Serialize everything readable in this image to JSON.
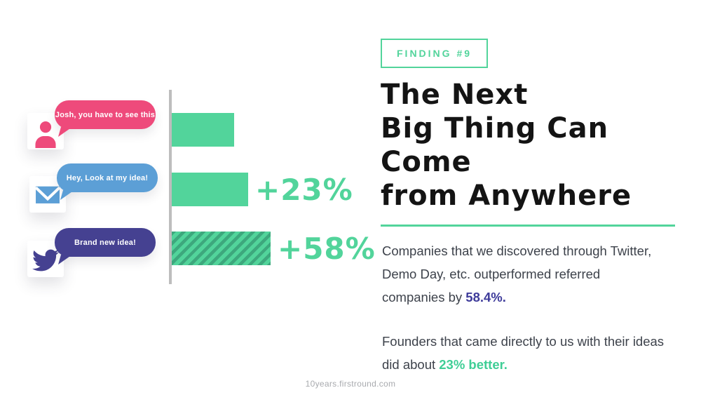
{
  "badge": {
    "label": "FINDING #9"
  },
  "heading": {
    "line1": "The Next",
    "line2": "Big Thing Can Come",
    "line3": "from Anywhere"
  },
  "body": {
    "p1_line1": "Companies that we discovered through Twitter,",
    "p1_line2": "Demo Day, etc. outperformed referred",
    "p1_line3_prefix": "companies by ",
    "p1_line3_highlight": "58.4%.",
    "p2_line1": "Founders that came directly to us with their ideas",
    "p2_line2_prefix": "did about ",
    "p2_line2_highlight": "23% better."
  },
  "messages": [
    {
      "icon": "person-icon",
      "text": "Josh, you have to see this",
      "bubble_color": "#ee4a7b"
    },
    {
      "icon": "envelope-icon",
      "text": "Hey, Look at my idea!",
      "bubble_color": "#5c9fd6"
    },
    {
      "icon": "twitter-bird-icon",
      "text": "Brand new idea!",
      "bubble_color": "#454191"
    }
  ],
  "chart_data": {
    "type": "bar",
    "orientation": "horizontal",
    "categories": [
      "Josh, you have to see this",
      "Hey, Look at my idea!",
      "Brand new idea!"
    ],
    "values": [
      100,
      123,
      158
    ],
    "bar_labels": [
      "",
      "+23%",
      "+58%"
    ],
    "bar_styles": [
      "solid",
      "solid",
      "hatched"
    ],
    "xlim": [
      0,
      178
    ],
    "grid": false,
    "legend": false,
    "bar_color": "#52d49b",
    "hatch_color": "#3da87d",
    "axis_color": "#bdbdbd"
  },
  "footer": {
    "link": "10years.firstround.com"
  },
  "colors": {
    "green": "#52d49b",
    "green_highlight_text": "#3fce96",
    "hatch_dark_green": "#3da87d",
    "pink": "#ee4a7b",
    "blue": "#5c9fd6",
    "indigo": "#454191",
    "indigo_highlight_text": "#3e3b9a",
    "heading_text": "#141414",
    "body_text": "#3d424b",
    "axis_gray": "#bdbdbd",
    "footer_gray": "#a8aaae"
  }
}
